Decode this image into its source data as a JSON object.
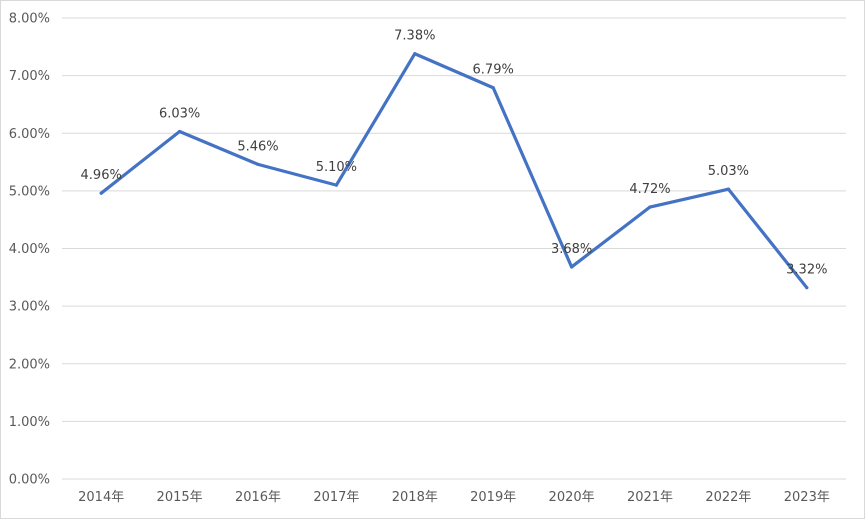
{
  "chart_data": {
    "type": "line",
    "title": "",
    "xlabel": "",
    "ylabel": "",
    "categories": [
      "2014年",
      "2015年",
      "2016年",
      "2017年",
      "2018年",
      "2019年",
      "2020年",
      "2021年",
      "2022年",
      "2023年"
    ],
    "series": [
      {
        "name": "",
        "values": [
          4.96,
          6.03,
          5.46,
          5.1,
          7.38,
          6.79,
          3.68,
          4.72,
          5.03,
          3.32
        ],
        "labels": [
          "4.96%",
          "6.03%",
          "5.46%",
          "5.10%",
          "7.38%",
          "6.79%",
          "3.68%",
          "4.72%",
          "5.03%",
          "3.32%"
        ],
        "color": "#4472c4"
      }
    ],
    "ylim": [
      0,
      8
    ],
    "yticks": [
      0,
      1,
      2,
      3,
      4,
      5,
      6,
      7,
      8
    ],
    "ytick_labels": [
      "0.00%",
      "1.00%",
      "2.00%",
      "3.00%",
      "4.00%",
      "5.00%",
      "6.00%",
      "7.00%",
      "8.00%"
    ],
    "grid": true,
    "legend": "none"
  }
}
